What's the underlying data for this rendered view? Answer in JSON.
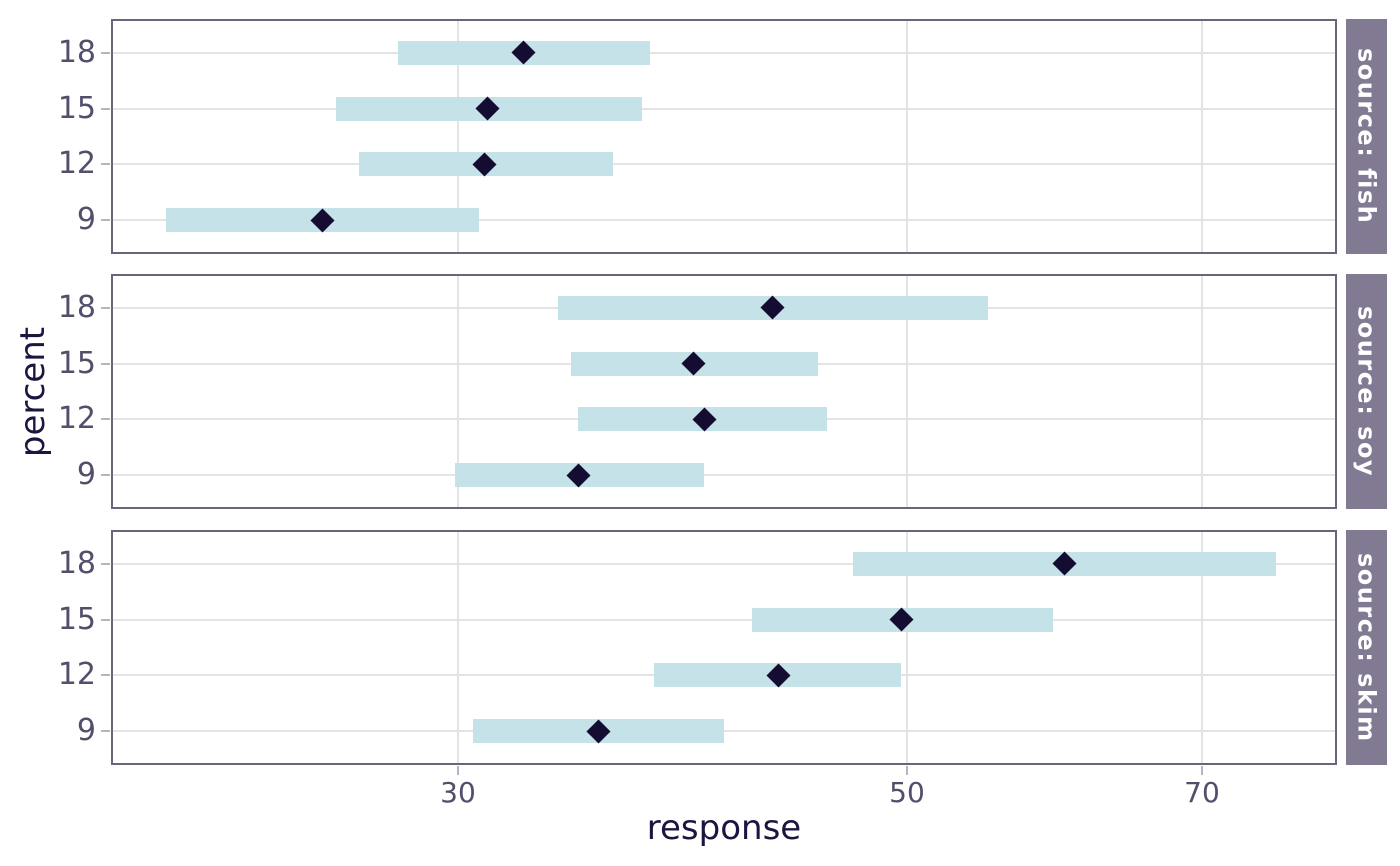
{
  "figure": {
    "x_axis_title": "response",
    "y_axis_title": "percent"
  },
  "chart_data": {
    "type": "dot-interval",
    "title": "",
    "xlabel": "response",
    "ylabel": "percent",
    "x_scale": "log10",
    "x_domain": [
      20.2,
      81.6
    ],
    "x_ticks": [
      "30",
      "50",
      "70"
    ],
    "x_tick_values": [
      30,
      50,
      70
    ],
    "y_categories_top_to_bottom": [
      "18",
      "15",
      "12",
      "9"
    ],
    "grid": "on",
    "legend": "none",
    "facets": [
      {
        "strip_label": "source: fish",
        "points": [
          {
            "percent": "18",
            "response": 32.3,
            "lower": 28.0,
            "upper": 37.3
          },
          {
            "percent": "15",
            "response": 31.0,
            "lower": 26.1,
            "upper": 37.0
          },
          {
            "percent": "12",
            "response": 30.9,
            "lower": 26.8,
            "upper": 35.8
          },
          {
            "percent": "9",
            "response": 25.7,
            "lower": 21.5,
            "upper": 30.7
          }
        ]
      },
      {
        "strip_label": "source: soy",
        "points": [
          {
            "percent": "18",
            "response": 42.9,
            "lower": 33.6,
            "upper": 54.8
          },
          {
            "percent": "15",
            "response": 39.2,
            "lower": 34.1,
            "upper": 45.2
          },
          {
            "percent": "12",
            "response": 39.7,
            "lower": 34.4,
            "upper": 45.7
          },
          {
            "percent": "9",
            "response": 34.4,
            "lower": 29.9,
            "upper": 39.7
          }
        ]
      },
      {
        "strip_label": "source: skim",
        "points": [
          {
            "percent": "18",
            "response": 59.8,
            "lower": 47.0,
            "upper": 76.1
          },
          {
            "percent": "15",
            "response": 49.7,
            "lower": 41.9,
            "upper": 59.0
          },
          {
            "percent": "12",
            "response": 43.2,
            "lower": 37.5,
            "upper": 49.7
          },
          {
            "percent": "9",
            "response": 35.2,
            "lower": 30.5,
            "upper": 40.6
          }
        ]
      }
    ],
    "colors": {
      "interval_bar": "#c5e2e8",
      "point_diamond": "#140d31",
      "strip_background": "#817a92",
      "strip_text": "#ffffff",
      "panel_border": "#6b657c",
      "gridline": "#e4e4e4",
      "tick_label": "#544e6b",
      "axis_title": "#1d1440"
    }
  }
}
